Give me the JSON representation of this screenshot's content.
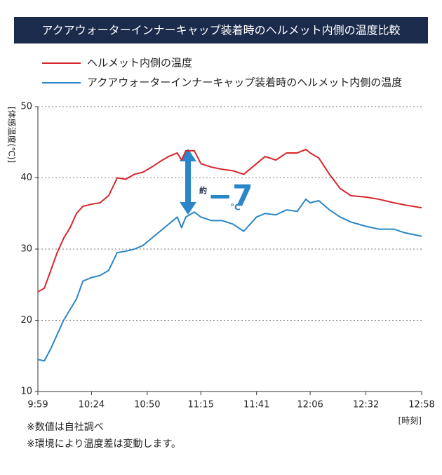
{
  "chart_data": {
    "type": "line",
    "title": "アクアウォーターインナーキャップ装着時のヘルメット内側の温度比較",
    "y_label": "[体感温度(℃)]",
    "x_label": "[時刻]",
    "annotation": {
      "prefix": "約",
      "value": "−7",
      "unit": "°C"
    },
    "notes": [
      "※数値は自社調べ",
      "※環境により温度差は変動します。"
    ],
    "x": [
      599,
      602,
      605,
      608,
      611,
      614,
      617,
      620,
      624,
      628,
      632,
      636,
      640,
      644,
      648,
      652,
      656,
      660,
      664,
      666,
      668,
      672,
      675,
      680,
      685,
      690,
      695,
      701,
      705,
      710,
      715,
      720,
      724,
      726,
      730,
      735,
      740,
      745,
      752,
      758,
      765,
      770,
      778
    ],
    "series": [
      {
        "name": "ヘルメット内側の温度",
        "color": "#d7262b",
        "values": [
          24,
          24.5,
          27,
          29.5,
          31.5,
          33,
          35,
          36,
          36.3,
          36.5,
          37.5,
          40,
          39.8,
          40.5,
          40.8,
          41.5,
          42.3,
          43,
          43.5,
          42.5,
          43.8,
          43.8,
          42,
          41.5,
          41.2,
          41,
          40.5,
          42,
          43,
          42.5,
          43.5,
          43.5,
          44,
          43.5,
          42.8,
          40.5,
          38.5,
          37.5,
          37.3,
          37,
          36.5,
          36.2,
          35.8
        ]
      },
      {
        "name": "アクアウォーターインナーキャップ装着時のヘルメット内側の温度",
        "color": "#2a86c8",
        "values": [
          14.5,
          14.3,
          16,
          18,
          20,
          21.5,
          23,
          25.5,
          26,
          26.3,
          27,
          29.5,
          29.7,
          30,
          30.5,
          31.5,
          32.5,
          33.5,
          34.5,
          33,
          34.5,
          35.2,
          34.5,
          34,
          34,
          33.5,
          32.5,
          34.5,
          35,
          34.8,
          35.5,
          35.3,
          37,
          36.5,
          36.8,
          35.5,
          34.5,
          33.8,
          33.2,
          32.8,
          32.8,
          32.3,
          31.8
        ]
      }
    ],
    "xlim": [
      599,
      778
    ],
    "xticks": [
      {
        "value": 599,
        "label": "9:59"
      },
      {
        "value": 624,
        "label": "10:24"
      },
      {
        "value": 650,
        "label": "10:50"
      },
      {
        "value": 675,
        "label": "11:15"
      },
      {
        "value": 701,
        "label": "11:41"
      },
      {
        "value": 726,
        "label": "12:06"
      },
      {
        "value": 752,
        "label": "12:32"
      },
      {
        "value": 778,
        "label": "12:58"
      }
    ],
    "ylim": [
      10,
      50
    ],
    "yticks": [
      10,
      20,
      30,
      40,
      50
    ],
    "grid": true
  }
}
